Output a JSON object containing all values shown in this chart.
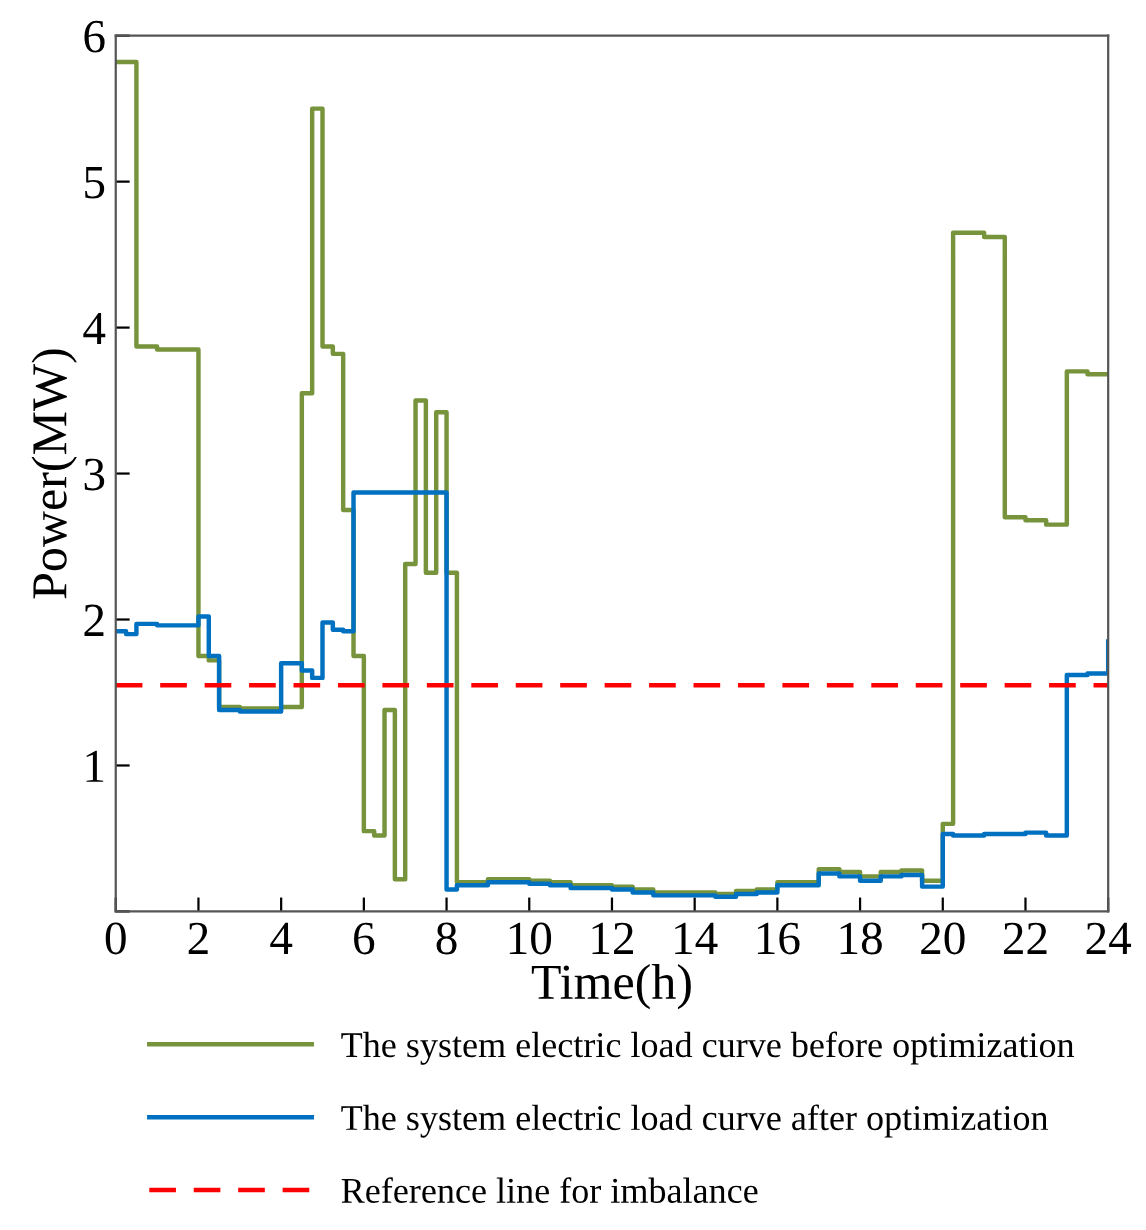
{
  "chart_data": {
    "type": "step",
    "xlabel": "Time(h)",
    "ylabel": "Power(MW)",
    "xlim": [
      0,
      24
    ],
    "ylim": [
      0,
      6
    ],
    "xticks": [
      0,
      2,
      4,
      6,
      8,
      10,
      12,
      14,
      16,
      18,
      20,
      22,
      24
    ],
    "yticks": [
      {
        "value": 0,
        "label": null
      },
      1,
      2,
      3,
      4,
      5,
      6
    ],
    "grid": false,
    "legend": "bottom",
    "series": [
      {
        "name": "The system electric load curve before optimization",
        "color": "#77933c",
        "x": [
          0,
          0.5,
          1,
          2,
          2.25,
          2.5,
          3,
          4,
          4.5,
          4.75,
          5,
          5.25,
          5.5,
          5.75,
          6,
          6.25,
          6.5,
          6.75,
          7,
          7.25,
          7.5,
          7.75,
          8,
          8.25,
          9,
          10,
          10.5,
          11,
          12,
          12.5,
          13,
          14,
          14.5,
          15,
          15.5,
          16,
          16.5,
          17,
          17.5,
          18,
          18.5,
          19,
          19.5,
          20,
          20.25,
          21,
          21.5,
          22,
          22.5,
          23,
          23.5,
          24
        ],
        "values": [
          5.82,
          3.87,
          3.85,
          1.75,
          1.72,
          1.4,
          1.39,
          1.4,
          3.55,
          5.5,
          3.87,
          3.82,
          2.75,
          1.75,
          0.55,
          0.52,
          1.38,
          0.22,
          2.38,
          3.5,
          2.32,
          3.42,
          2.32,
          0.2,
          0.22,
          0.21,
          0.2,
          0.18,
          0.17,
          0.15,
          0.13,
          0.13,
          0.12,
          0.14,
          0.15,
          0.2,
          0.2,
          0.29,
          0.27,
          0.24,
          0.27,
          0.28,
          0.21,
          0.6,
          4.65,
          4.62,
          2.7,
          2.68,
          2.65,
          3.7,
          3.68,
          3.68
        ]
      },
      {
        "name": "The system electric load curve after optimization",
        "color": "#0070c0",
        "x": [
          0,
          0.25,
          0.5,
          1,
          2,
          2.25,
          2.5,
          3,
          4,
          4.5,
          4.75,
          5,
          5.25,
          5.5,
          5.75,
          8,
          8.25,
          9,
          10,
          10.5,
          11,
          12,
          12.5,
          13,
          14,
          14.5,
          15,
          15.5,
          16,
          16.5,
          17,
          17.5,
          18,
          18.5,
          19,
          19.5,
          20,
          20.25,
          21,
          22,
          22.5,
          23,
          23.5,
          24
        ],
        "values": [
          1.92,
          1.9,
          1.97,
          1.96,
          2.02,
          1.75,
          1.38,
          1.37,
          1.7,
          1.65,
          1.6,
          1.98,
          1.93,
          1.92,
          2.87,
          0.15,
          0.18,
          0.2,
          0.19,
          0.18,
          0.16,
          0.15,
          0.13,
          0.11,
          0.11,
          0.1,
          0.12,
          0.13,
          0.18,
          0.18,
          0.26,
          0.24,
          0.21,
          0.24,
          0.25,
          0.17,
          0.53,
          0.52,
          0.53,
          0.54,
          0.52,
          1.62,
          1.63,
          1.85
        ]
      }
    ],
    "ref_lines": [
      {
        "axis": "y",
        "value": 1.55,
        "label": "Reference line for imbalance",
        "color": "#ff0000",
        "line_style": "dashed"
      }
    ]
  }
}
